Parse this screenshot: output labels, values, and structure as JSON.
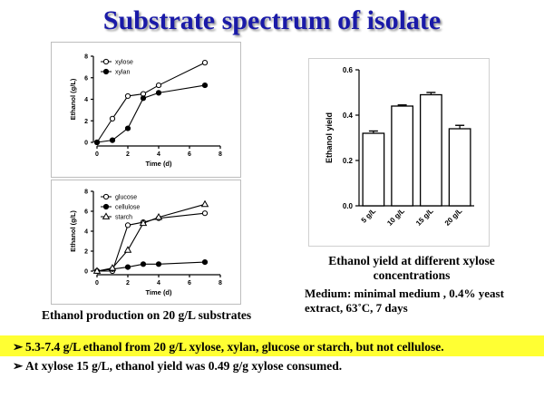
{
  "slide": {
    "title": "Substrate spectrum of isolate",
    "bullet_marker": "➢",
    "bullets": [
      "5.3-7.4 g/L ethanol from 20 g/L xylose, xylan, glucose or starch, but not cellulose.",
      "At xylose 15 g/L, ethanol yield was 0.49 g/g xylose consumed."
    ],
    "highlight_color": "#ffff33",
    "title_color": "#1a1aa8"
  },
  "captions": {
    "substrates": "Ethanol production on 20 g/L substrates",
    "yield": "Ethanol yield at different xylose concentrations",
    "medium": "Medium: minimal medium , 0.4% yeast extract, 63˚C, 7 days"
  },
  "chart_data": [
    {
      "type": "line",
      "xlabel": "Time (d)",
      "ylabel": "Ethanol (g/L)",
      "xlim": [
        0,
        8
      ],
      "ylim": [
        0,
        8
      ],
      "xticks": [
        "0",
        "2",
        "4",
        "6",
        "8"
      ],
      "yticks": [
        "0",
        "2",
        "4",
        "6",
        "8"
      ],
      "legend_position": "top-left",
      "series": [
        {
          "name": "xylose",
          "marker": "open-circle",
          "x": [
            0,
            1,
            2,
            3,
            4,
            7
          ],
          "y": [
            0,
            2.2,
            4.3,
            4.5,
            5.3,
            7.4
          ]
        },
        {
          "name": "xylan",
          "marker": "filled-circle",
          "x": [
            0,
            1,
            2,
            3,
            4,
            7
          ],
          "y": [
            0,
            0.2,
            1.3,
            4.1,
            4.6,
            5.3
          ]
        }
      ]
    },
    {
      "type": "line",
      "xlabel": "Time (d)",
      "ylabel": "Ethanol (g/L)",
      "xlim": [
        0,
        8
      ],
      "ylim": [
        0,
        8
      ],
      "xticks": [
        "0",
        "2",
        "4",
        "6",
        "8"
      ],
      "yticks": [
        "0",
        "2",
        "4",
        "6",
        "8"
      ],
      "legend_position": "top-left",
      "series": [
        {
          "name": "glucose",
          "marker": "open-circle",
          "x": [
            0,
            1,
            2,
            3,
            4,
            7
          ],
          "y": [
            0,
            0,
            4.6,
            4.9,
            5.3,
            5.8
          ]
        },
        {
          "name": "cellulose",
          "marker": "filled-circle",
          "x": [
            0,
            1,
            2,
            3,
            4,
            7
          ],
          "y": [
            0,
            0.2,
            0.4,
            0.7,
            0.7,
            0.9
          ]
        },
        {
          "name": "starch",
          "marker": "open-triangle",
          "x": [
            0,
            1,
            2,
            3,
            4,
            7
          ],
          "y": [
            0,
            0.3,
            2.1,
            4.8,
            5.4,
            6.7
          ]
        }
      ]
    },
    {
      "type": "bar",
      "ylabel": "Ethanol yield",
      "categories": [
        "5 g/L",
        "10 g/L",
        "15 g/L",
        "20 g/L"
      ],
      "values": [
        0.32,
        0.44,
        0.49,
        0.34
      ],
      "errors": [
        0.01,
        0.005,
        0.01,
        0.015
      ],
      "ylim": [
        0,
        0.6
      ],
      "yticks": [
        "0.0",
        "0.2",
        "0.4",
        "0.6"
      ]
    }
  ]
}
